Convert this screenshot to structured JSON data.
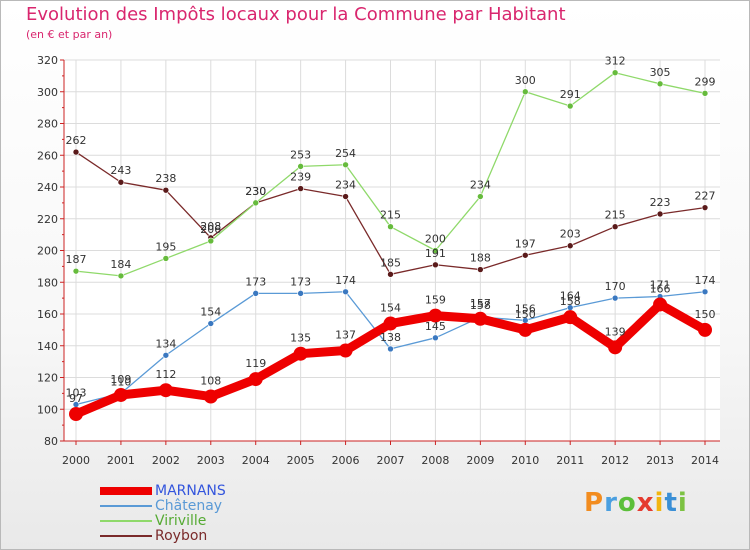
{
  "title": "Evolution des Impôts locaux pour la Commune par Habitant",
  "subtitle": "(en € et par an)",
  "logo": {
    "text": "Proxiti",
    "colors": [
      "#f28c1f",
      "#4a9fe0",
      "#5bbf3a",
      "#e53b2f",
      "#f2b50f",
      "#3a8fd6",
      "#7cc242"
    ]
  },
  "chart_data": {
    "type": "line",
    "x": [
      2000,
      2001,
      2002,
      2003,
      2004,
      2005,
      2006,
      2007,
      2008,
      2009,
      2010,
      2011,
      2012,
      2013,
      2014
    ],
    "ylim": [
      80,
      320
    ],
    "yticks": [
      80,
      100,
      120,
      140,
      160,
      180,
      200,
      220,
      240,
      260,
      280,
      300,
      320
    ],
    "grid": true,
    "legend_position": "bottom-left",
    "series": [
      {
        "name": "Roybon",
        "color": "#7a2a2a",
        "dot": "#5a1a1a",
        "values": [
          262,
          243,
          238,
          208,
          230,
          239,
          234,
          185,
          191,
          188,
          197,
          203,
          215,
          223,
          227
        ]
      },
      {
        "name": "Viriville",
        "color": "#8fd96a",
        "dot": "#66bb3c",
        "values": [
          187,
          184,
          195,
          206,
          230,
          253,
          254,
          215,
          200,
          234,
          300,
          291,
          312,
          305,
          299
        ]
      },
      {
        "name": "Châtenay",
        "color": "#5a9ad6",
        "dot": "#3a78c0",
        "values": [
          103,
          110,
          134,
          154,
          173,
          173,
          174,
          138,
          145,
          158,
          156,
          164,
          170,
          171,
          174
        ]
      },
      {
        "name": "MARNANS",
        "color": "#ee0000",
        "dot": "#ee0000",
        "values": [
          97,
          109,
          112,
          108,
          119,
          135,
          137,
          154,
          159,
          157,
          150,
          158,
          139,
          166,
          150
        ]
      }
    ]
  }
}
